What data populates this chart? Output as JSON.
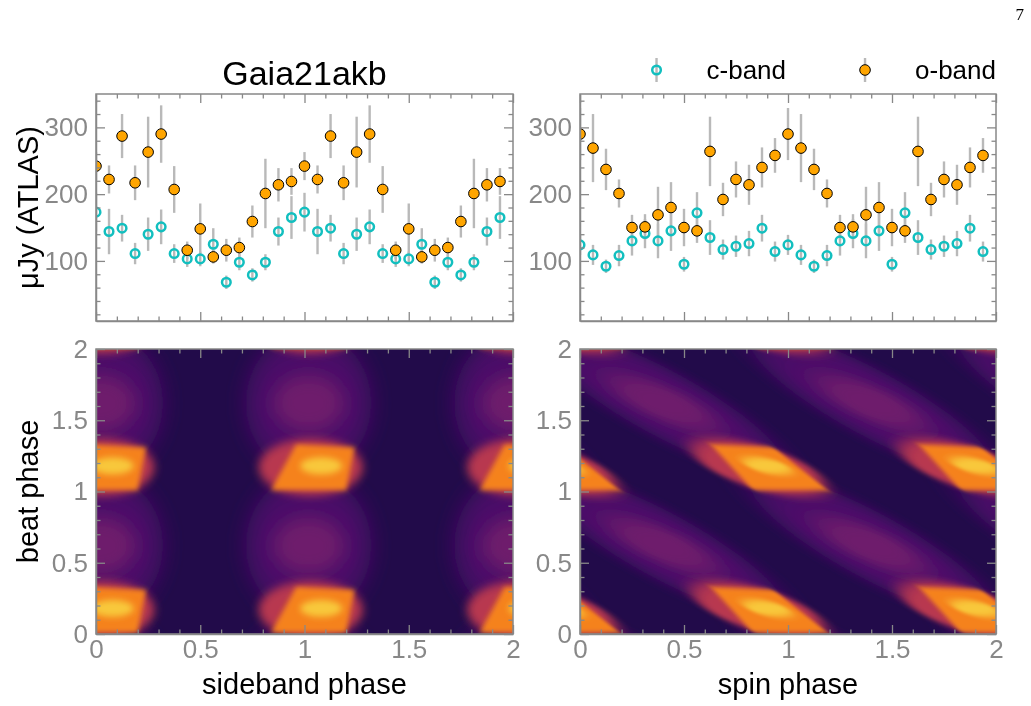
{
  "chart_data": [
    {
      "type": "scatter",
      "title": "Gaia21akb",
      "ylabel": "μJy (ATLAS)",
      "x": [
        0,
        0.0625,
        0.125,
        0.1875,
        0.25,
        0.3125,
        0.375,
        0.4375,
        0.5,
        0.5625,
        0.625,
        0.6875,
        0.75,
        0.8125,
        0.875,
        0.9375,
        1,
        1.0625,
        1.125,
        1.1875,
        1.25,
        1.3125,
        1.375,
        1.4375,
        1.5,
        1.5625,
        1.625,
        1.6875,
        1.75,
        1.8125,
        1.875,
        1.9375
      ],
      "series": [
        {
          "color": "#12bfbf",
          "values": [
            173,
            144,
            149,
            111,
            140,
            151,
            111,
            103,
            103,
            125,
            68,
            98,
            79,
            98,
            144,
            165,
            173,
            144,
            149,
            111,
            140,
            151,
            111,
            103,
            103,
            125,
            68,
            98,
            79,
            98,
            144,
            165
          ],
          "errors": [
            29,
            34,
            20,
            16,
            25,
            26,
            14,
            12,
            11,
            24,
            10,
            12,
            10,
            12,
            21,
            32,
            29,
            34,
            20,
            16,
            25,
            26,
            14,
            12,
            11,
            24,
            10,
            12,
            10,
            12,
            21,
            32
          ]
        },
        {
          "color": "#ffa500",
          "values": [
            242,
            222,
            287,
            217,
            263,
            290,
            207,
            116,
            148,
            106,
            116,
            120,
            159,
            201,
            214,
            219,
            242,
            222,
            287,
            217,
            263,
            290,
            207,
            116,
            148,
            106,
            116,
            120,
            159,
            201,
            214,
            219
          ],
          "errors": [
            21,
            21,
            33,
            26,
            53,
            43,
            35,
            13,
            38,
            10,
            17,
            15,
            24,
            52,
            25,
            20,
            21,
            21,
            33,
            26,
            53,
            43,
            35,
            13,
            38,
            10,
            17,
            15,
            24,
            52,
            25,
            20
          ]
        }
      ],
      "marker": "circle",
      "xlim": [
        0,
        2
      ],
      "ylim": [
        10,
        350
      ],
      "xticks": [
        0,
        {
          "value": 0.1,
          "label": null
        },
        {
          "value": 0.2,
          "label": null
        },
        {
          "value": 0.3,
          "label": null
        },
        {
          "value": 0.4,
          "label": null
        },
        0.5,
        {
          "value": 0.6,
          "label": null
        },
        {
          "value": 0.7,
          "label": null
        },
        {
          "value": 0.8,
          "label": null
        },
        {
          "value": 0.9,
          "label": null
        },
        1,
        {
          "value": 1.1,
          "label": null
        },
        {
          "value": 1.2,
          "label": null
        },
        {
          "value": 1.3,
          "label": null
        },
        {
          "value": 1.4,
          "label": null
        },
        1.5,
        {
          "value": 1.6,
          "label": null
        },
        {
          "value": 1.7,
          "label": null
        },
        {
          "value": 1.8,
          "label": null
        },
        {
          "value": 1.9,
          "label": null
        },
        2
      ],
      "yticks": [
        {
          "value": 20,
          "label": null
        },
        {
          "value": 40,
          "label": null
        },
        {
          "value": 60,
          "label": null
        },
        {
          "value": 80,
          "label": null
        },
        100,
        {
          "value": 120,
          "label": null
        },
        {
          "value": 140,
          "label": null
        },
        {
          "value": 160,
          "label": null
        },
        {
          "value": 180,
          "label": null
        },
        200,
        {
          "value": 220,
          "label": null
        },
        {
          "value": 240,
          "label": null
        },
        {
          "value": 260,
          "label": null
        },
        {
          "value": 280,
          "label": null
        },
        300,
        {
          "value": 320,
          "label": null
        },
        {
          "value": 340,
          "label": null
        }
      ],
      "tick_labels": "y"
    },
    {
      "type": "scatter",
      "x": [
        0,
        0.0625,
        0.125,
        0.1875,
        0.25,
        0.3125,
        0.375,
        0.4375,
        0.5,
        0.5625,
        0.625,
        0.6875,
        0.75,
        0.8125,
        0.875,
        0.9375,
        1,
        1.0625,
        1.125,
        1.1875,
        1.25,
        1.3125,
        1.375,
        1.4375,
        1.5,
        1.5625,
        1.625,
        1.6875,
        1.75,
        1.8125,
        1.875,
        1.9375
      ],
      "series": [
        {
          "name": "c-band",
          "color": "#12bfbf",
          "values": [
            124,
            109,
            92,
            108,
            130,
            141,
            130,
            145,
            95,
            172,
            135,
            117,
            122,
            126,
            149,
            114,
            124,
            109,
            92,
            108,
            130,
            141,
            130,
            145,
            95,
            172,
            135,
            117,
            122,
            126,
            149,
            114
          ],
          "errors": [
            15,
            15,
            10,
            16,
            22,
            22,
            26,
            30,
            11,
            31,
            26,
            15,
            16,
            19,
            20,
            15,
            15,
            15,
            10,
            16,
            22,
            22,
            26,
            30,
            11,
            31,
            26,
            15,
            16,
            19,
            20,
            15
          ]
        },
        {
          "name": "o-band",
          "color": "#ffa500",
          "values": [
            290,
            269,
            237,
            201,
            150,
            151,
            169,
            180,
            150,
            145,
            264,
            192,
            222,
            214,
            240,
            258,
            290,
            269,
            237,
            201,
            150,
            151,
            169,
            180,
            150,
            145,
            264,
            192,
            222,
            214,
            240,
            258
          ],
          "errors": [
            39,
            51,
            31,
            21,
            19,
            19,
            42,
            38,
            28,
            18,
            52,
            25,
            27,
            30,
            30,
            26,
            39,
            51,
            31,
            21,
            19,
            19,
            42,
            38,
            28,
            18,
            52,
            25,
            27,
            30,
            30,
            26
          ]
        }
      ],
      "marker": "circle",
      "legend": "top",
      "annotations": [
        "7"
      ],
      "xlim": [
        0,
        2
      ],
      "ylim": [
        10,
        350
      ],
      "xticks": [
        0,
        {
          "value": 0.1,
          "label": null
        },
        {
          "value": 0.2,
          "label": null
        },
        {
          "value": 0.3,
          "label": null
        },
        {
          "value": 0.4,
          "label": null
        },
        0.5,
        {
          "value": 0.6,
          "label": null
        },
        {
          "value": 0.7,
          "label": null
        },
        {
          "value": 0.8,
          "label": null
        },
        {
          "value": 0.9,
          "label": null
        },
        1,
        {
          "value": 1.1,
          "label": null
        },
        {
          "value": 1.2,
          "label": null
        },
        {
          "value": 1.3,
          "label": null
        },
        {
          "value": 1.4,
          "label": null
        },
        1.5,
        {
          "value": 1.6,
          "label": null
        },
        {
          "value": 1.7,
          "label": null
        },
        {
          "value": 1.8,
          "label": null
        },
        {
          "value": 1.9,
          "label": null
        },
        2
      ],
      "yticks": [
        {
          "value": 20,
          "label": null
        },
        {
          "value": 40,
          "label": null
        },
        {
          "value": 60,
          "label": null
        },
        {
          "value": 80,
          "label": null
        },
        100,
        {
          "value": 120,
          "label": null
        },
        {
          "value": 140,
          "label": null
        },
        {
          "value": 160,
          "label": null
        },
        {
          "value": 180,
          "label": null
        },
        200,
        {
          "value": 220,
          "label": null
        },
        {
          "value": 240,
          "label": null
        },
        {
          "value": 260,
          "label": null
        },
        {
          "value": 280,
          "label": null
        },
        300,
        {
          "value": 320,
          "label": null
        },
        {
          "value": 340,
          "label": null
        }
      ],
      "tick_labels": "y"
    },
    {
      "type": "heatmap",
      "xlabel": "sideband phase",
      "ylabel": "beat phase",
      "xlim": [
        0,
        2
      ],
      "ylim": [
        0,
        2
      ],
      "xticks": [
        0,
        {
          "value": 0.1,
          "label": null
        },
        {
          "value": 0.2,
          "label": null
        },
        {
          "value": 0.3,
          "label": null
        },
        {
          "value": 0.4,
          "label": null
        },
        0.5,
        {
          "value": 0.6,
          "label": null
        },
        {
          "value": 0.7,
          "label": null
        },
        {
          "value": 0.8,
          "label": null
        },
        {
          "value": 0.9,
          "label": null
        },
        1,
        {
          "value": 1.1,
          "label": null
        },
        {
          "value": 1.2,
          "label": null
        },
        {
          "value": 1.3,
          "label": null
        },
        {
          "value": 1.4,
          "label": null
        },
        1.5,
        {
          "value": 1.6,
          "label": null
        },
        {
          "value": 1.7,
          "label": null
        },
        {
          "value": 1.8,
          "label": null
        },
        {
          "value": 1.9,
          "label": null
        },
        2
      ],
      "yticks": [
        0,
        {
          "value": 0.1,
          "label": null
        },
        {
          "value": 0.2,
          "label": null
        },
        {
          "value": 0.3,
          "label": null
        },
        {
          "value": 0.4,
          "label": null
        },
        0.5,
        {
          "value": 0.6,
          "label": null
        },
        {
          "value": 0.7,
          "label": null
        },
        {
          "value": 0.8,
          "label": null
        },
        {
          "value": 0.9,
          "label": null
        },
        1,
        {
          "value": 1.1,
          "label": null
        },
        {
          "value": 1.2,
          "label": null
        },
        {
          "value": 1.3,
          "label": null
        },
        {
          "value": 1.4,
          "label": null
        },
        1.5,
        {
          "value": 1.6,
          "label": null
        },
        {
          "value": 1.7,
          "label": null
        },
        {
          "value": 1.8,
          "label": null
        },
        {
          "value": 1.9,
          "label": null
        },
        2
      ]
    },
    {
      "type": "heatmap",
      "xlabel": "spin phase",
      "xlim": [
        0,
        2
      ],
      "ylim": [
        0,
        2
      ],
      "xticks": [
        0,
        {
          "value": 0.1,
          "label": null
        },
        {
          "value": 0.2,
          "label": null
        },
        {
          "value": 0.3,
          "label": null
        },
        {
          "value": 0.4,
          "label": null
        },
        0.5,
        {
          "value": 0.6,
          "label": null
        },
        {
          "value": 0.7,
          "label": null
        },
        {
          "value": 0.8,
          "label": null
        },
        {
          "value": 0.9,
          "label": null
        },
        1,
        {
          "value": 1.1,
          "label": null
        },
        {
          "value": 1.2,
          "label": null
        },
        {
          "value": 1.3,
          "label": null
        },
        {
          "value": 1.4,
          "label": null
        },
        1.5,
        {
          "value": 1.6,
          "label": null
        },
        {
          "value": 1.7,
          "label": null
        },
        {
          "value": 1.8,
          "label": null
        },
        {
          "value": 1.9,
          "label": null
        },
        2
      ],
      "yticks": [
        0,
        {
          "value": 0.1,
          "label": null
        },
        {
          "value": 0.2,
          "label": null
        },
        {
          "value": 0.3,
          "label": null
        },
        {
          "value": 0.4,
          "label": null
        },
        0.5,
        {
          "value": 0.6,
          "label": null
        },
        {
          "value": 0.7,
          "label": null
        },
        {
          "value": 0.8,
          "label": null
        },
        {
          "value": 0.9,
          "label": null
        },
        1,
        {
          "value": 1.1,
          "label": null
        },
        {
          "value": 1.2,
          "label": null
        },
        {
          "value": 1.3,
          "label": null
        },
        {
          "value": 1.4,
          "label": null
        },
        1.5,
        {
          "value": 1.6,
          "label": null
        },
        {
          "value": 1.7,
          "label": null
        },
        {
          "value": 1.8,
          "label": null
        },
        {
          "value": 1.9,
          "label": null
        },
        2
      ]
    }
  ]
}
